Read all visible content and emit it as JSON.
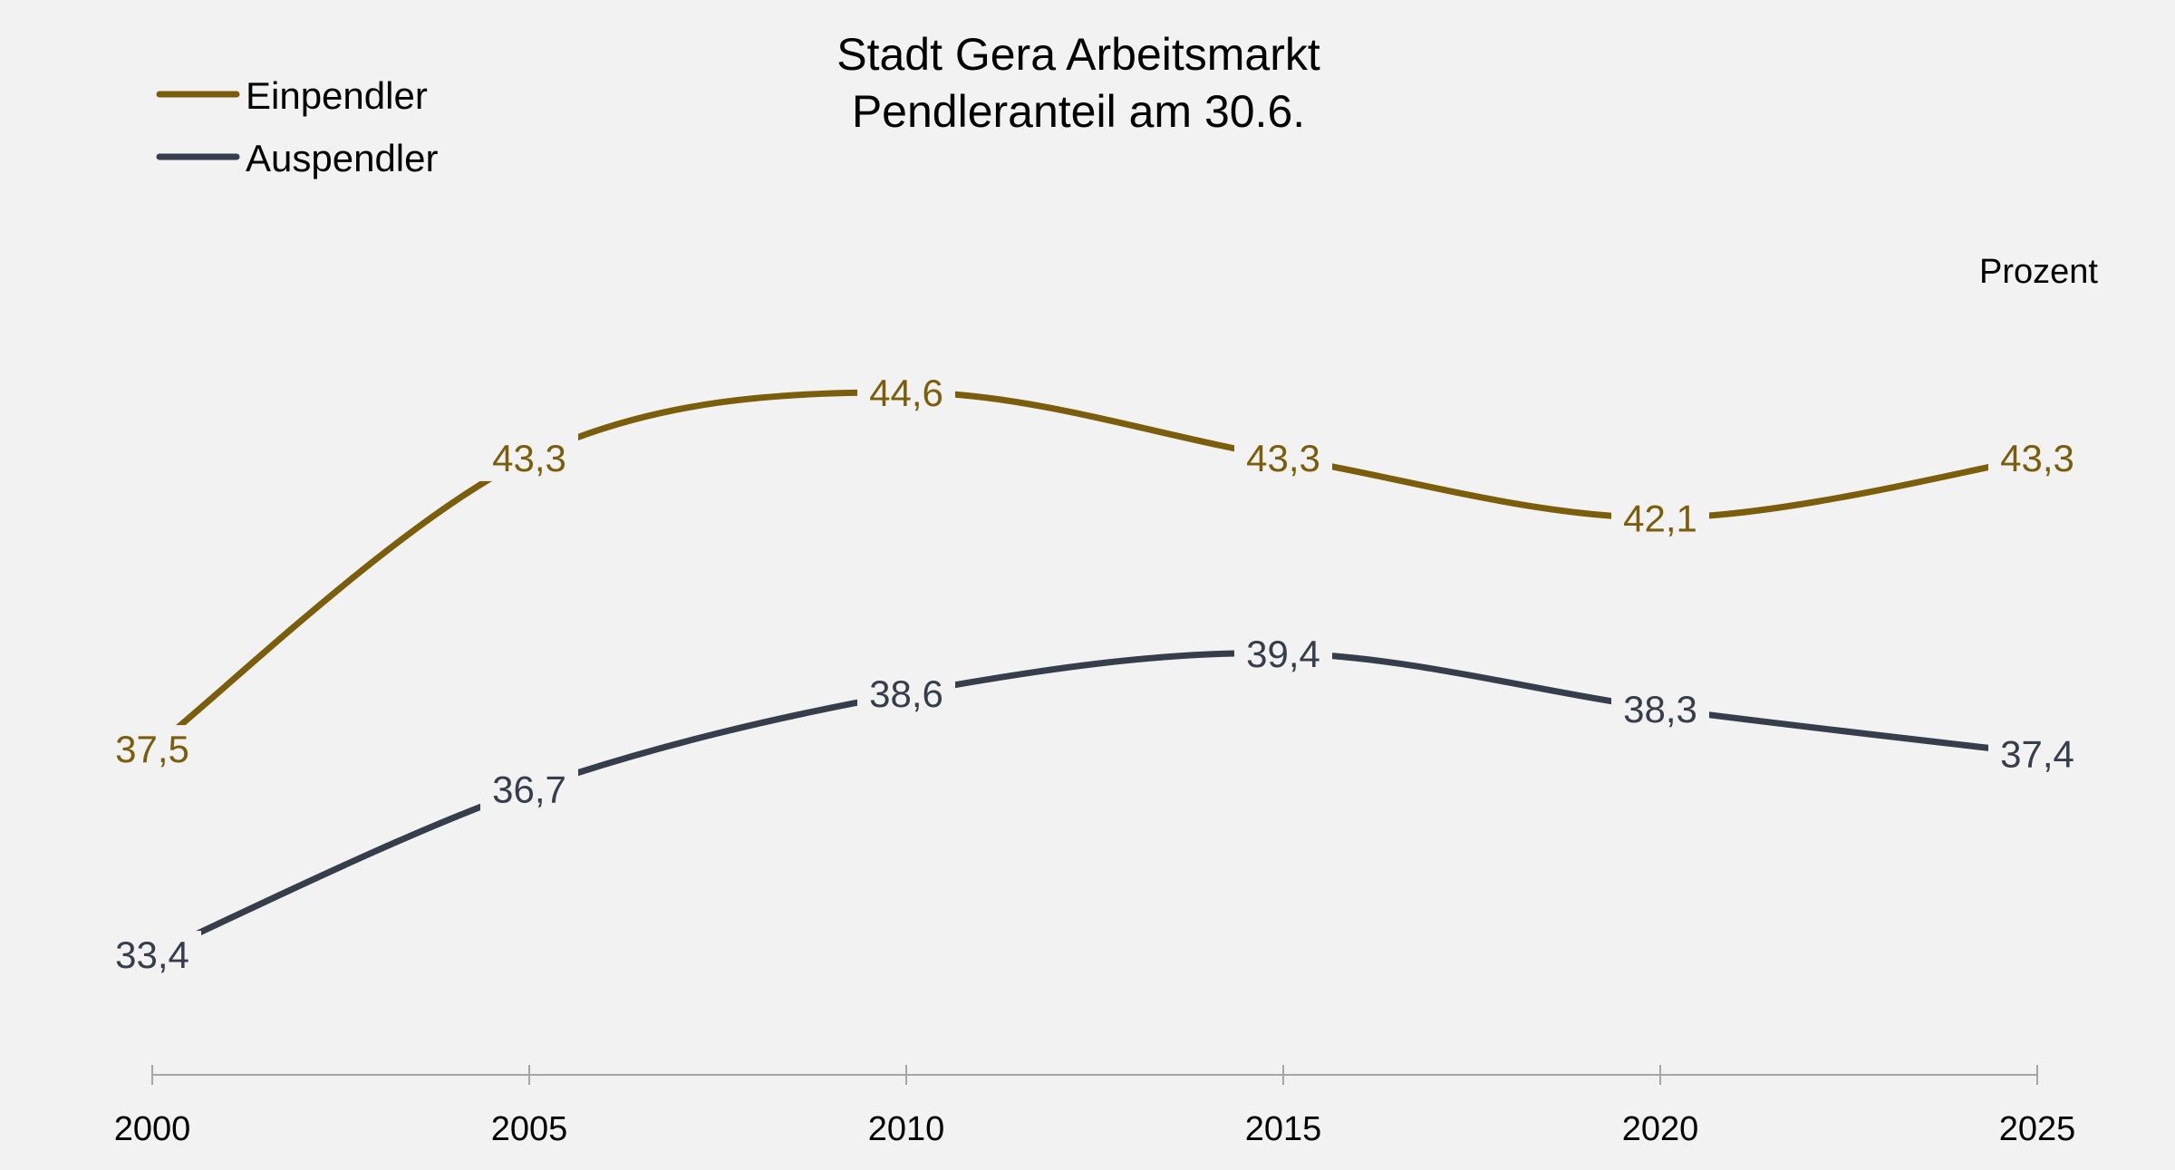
{
  "chart_data": {
    "type": "line",
    "title": "Stadt Gera Arbeitsmarkt",
    "subtitle": "Pendleranteil am 30.6.",
    "unit_label": "Prozent",
    "x": [
      2000,
      2005,
      2010,
      2015,
      2020,
      2025
    ],
    "x_tick_labels": [
      "2000",
      "2005",
      "2010",
      "2015",
      "2020",
      "2025"
    ],
    "y_range": [
      31,
      47
    ],
    "grid": false,
    "legend_position": "top-left",
    "series": [
      {
        "name": "Einpendler",
        "color": "#7a5e0c",
        "values": [
          37.5,
          43.3,
          44.6,
          43.3,
          42.1,
          43.3
        ],
        "labels": [
          "37,5",
          "43,3",
          "44,6",
          "43,3",
          "42,1",
          "43,3"
        ]
      },
      {
        "name": "Auspendler",
        "color": "#363d4b",
        "values": [
          33.4,
          36.7,
          38.6,
          39.4,
          38.3,
          37.4
        ],
        "labels": [
          "33,4",
          "36,7",
          "38,6",
          "39,4",
          "38,3",
          "37,4"
        ]
      }
    ]
  }
}
